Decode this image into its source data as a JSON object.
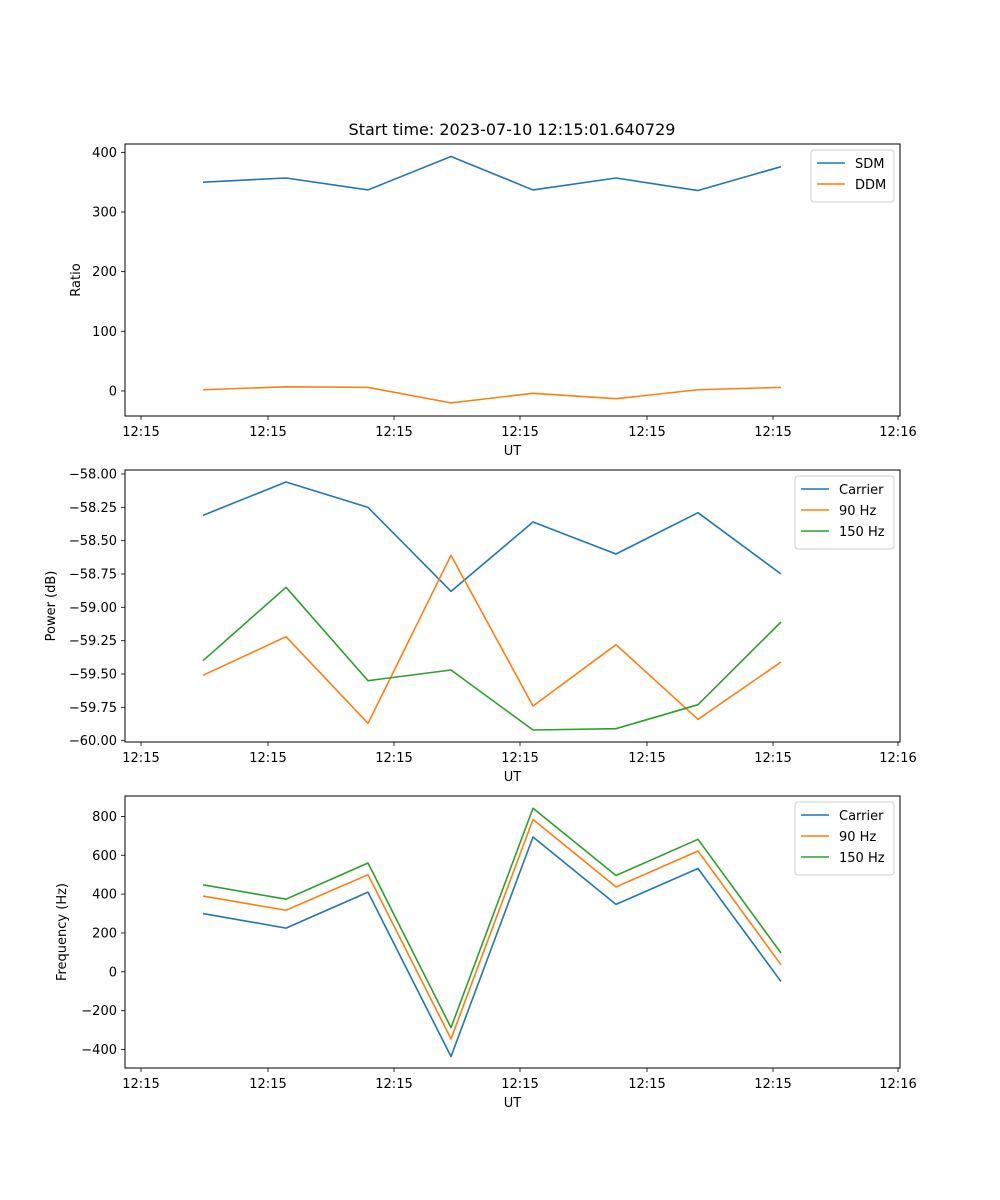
{
  "title": "Start time: 2023-07-10 12:15:01.640729",
  "chart_data": [
    {
      "type": "line",
      "ylabel": "Ratio",
      "xlabel": "UT",
      "xtick_labels": [
        "12:15",
        "12:15",
        "12:15",
        "12:15",
        "12:15",
        "12:15",
        "12:16"
      ],
      "ylim": [
        -42,
        414
      ],
      "yticks": [
        0,
        100,
        200,
        300,
        400
      ],
      "ytick_labels": [
        "0",
        "100",
        "200",
        "300",
        "400"
      ],
      "series": [
        {
          "name": "SDM",
          "color": "#1f77b4",
          "values": [
            350,
            357,
            337,
            393,
            337,
            357,
            336,
            376
          ]
        },
        {
          "name": "DDM",
          "color": "#ff7f0e",
          "values": [
            2,
            7,
            6,
            -20,
            -4,
            -13,
            2,
            6
          ]
        }
      ]
    },
    {
      "type": "line",
      "ylabel": "Power (dB)",
      "xlabel": "UT",
      "xtick_labels": [
        "12:15",
        "12:15",
        "12:15",
        "12:15",
        "12:15",
        "12:15",
        "12:16"
      ],
      "ylim": [
        -60.01,
        -57.97
      ],
      "yticks": [
        -60.0,
        -59.75,
        -59.5,
        -59.25,
        -59.0,
        -58.75,
        -58.5,
        -58.25,
        -58.0
      ],
      "ytick_labels": [
        "−60.00",
        "−59.75",
        "−59.50",
        "−59.25",
        "−59.00",
        "−58.75",
        "−58.50",
        "−58.25",
        "−58.00"
      ],
      "series": [
        {
          "name": "Carrier",
          "color": "#1f77b4",
          "values": [
            -58.31,
            -58.06,
            -58.25,
            -58.88,
            -58.36,
            -58.6,
            -58.29,
            -58.75
          ]
        },
        {
          "name": "90 Hz",
          "color": "#ff7f0e",
          "values": [
            -59.51,
            -59.22,
            -59.87,
            -58.61,
            -59.74,
            -59.28,
            -59.84,
            -59.41
          ]
        },
        {
          "name": "150 Hz",
          "color": "#2ca02c",
          "values": [
            -59.4,
            -58.85,
            -59.55,
            -59.47,
            -59.92,
            -59.91,
            -59.73,
            -59.11
          ]
        }
      ]
    },
    {
      "type": "line",
      "ylabel": "Frequency (Hz)",
      "xlabel": "UT",
      "xtick_labels": [
        "12:15",
        "12:15",
        "12:15",
        "12:15",
        "12:15",
        "12:15",
        "12:16"
      ],
      "ylim": [
        -495,
        905
      ],
      "yticks": [
        -400,
        -200,
        0,
        200,
        400,
        600,
        800
      ],
      "ytick_labels": [
        "−400",
        "−200",
        "0",
        "200",
        "400",
        "600",
        "800"
      ],
      "series": [
        {
          "name": "Carrier",
          "color": "#1f77b4",
          "values": [
            300,
            225,
            410,
            -436,
            694,
            347,
            532,
            -50
          ]
        },
        {
          "name": "90 Hz",
          "color": "#ff7f0e",
          "values": [
            390,
            317,
            500,
            -345,
            784,
            437,
            622,
            36
          ]
        },
        {
          "name": "150 Hz",
          "color": "#2ca02c",
          "values": [
            448,
            374,
            560,
            -287,
            842,
            496,
            682,
            97
          ]
        }
      ]
    }
  ]
}
